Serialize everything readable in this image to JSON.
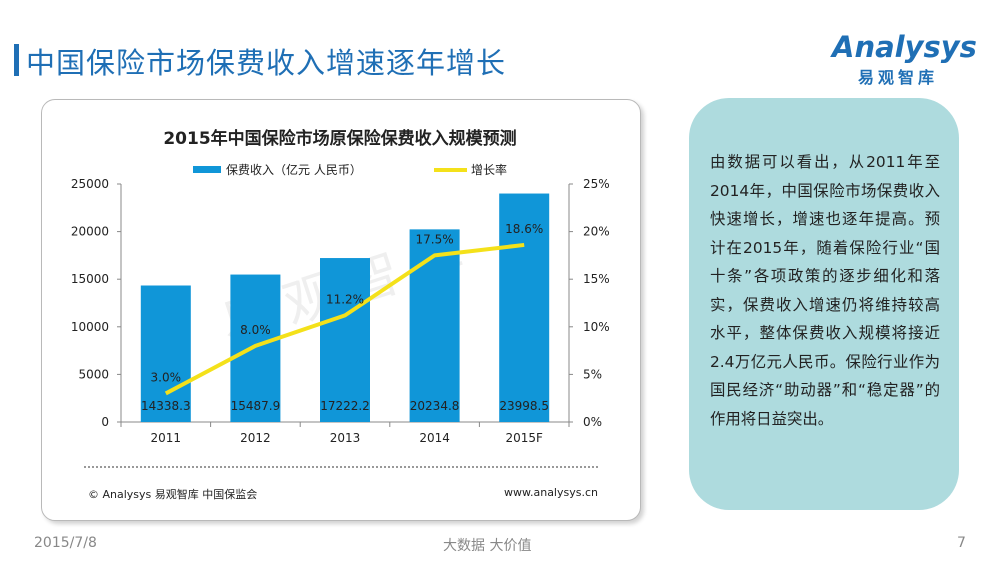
{
  "slide": {
    "title": "中国保险市场保费收入增速逐年增长",
    "date": "2015/7/8",
    "tagline": "大数据    大价值",
    "page_number": "7"
  },
  "logo": {
    "wordmark": "Analysys",
    "subtitle": "易观智库",
    "color": "#1f6fb5"
  },
  "chart_data": {
    "type": "bar",
    "title": "2015年中国保险市场原保险保费收入规模预测",
    "categories": [
      "2011",
      "2012",
      "2013",
      "2014",
      "2015F"
    ],
    "series": [
      {
        "name": "保费收入（亿元 人民币）",
        "type": "bar",
        "axis": "left",
        "color": "#1096d8",
        "values": [
          14338.3,
          15487.9,
          17222.2,
          20234.8,
          23998.5
        ],
        "labels": [
          "14338.3",
          "15487.9",
          "17222.2",
          "20234.8",
          "23998.5"
        ]
      },
      {
        "name": "增长率",
        "type": "line",
        "axis": "right",
        "color": "#f4e11a",
        "values": [
          3.0,
          8.0,
          11.2,
          17.5,
          18.6
        ],
        "labels": [
          "3.0%",
          "8.0%",
          "11.2%",
          "17.5%",
          "18.6%"
        ]
      }
    ],
    "y_left": {
      "min": 0,
      "max": 25000,
      "ticks": [
        "0",
        "5000",
        "10000",
        "15000",
        "20000",
        "25000"
      ]
    },
    "y_right": {
      "min": 0,
      "max": 25,
      "ticks": [
        "0%",
        "5%",
        "10%",
        "15%",
        "20%",
        "25%"
      ]
    },
    "legend_position": "top",
    "grid": false,
    "source_left": "© Analysys 易观智库 中国保监会",
    "source_right": "www.analysys.cn",
    "watermark": "易观智库"
  },
  "note": {
    "text": "由数据可以看出，从2011年至2014年，中国保险市场保费收入快速增长，增速也逐年提高。预计在2015年，随着保险行业“国十条”各项政策的逐步细化和落实，保费收入增速仍将维持较高水平，整体保费收入规模将接近2.4万亿元人民币。保险行业作为国民经济“助动器”和“稳定器”的作用将日益突出。"
  }
}
